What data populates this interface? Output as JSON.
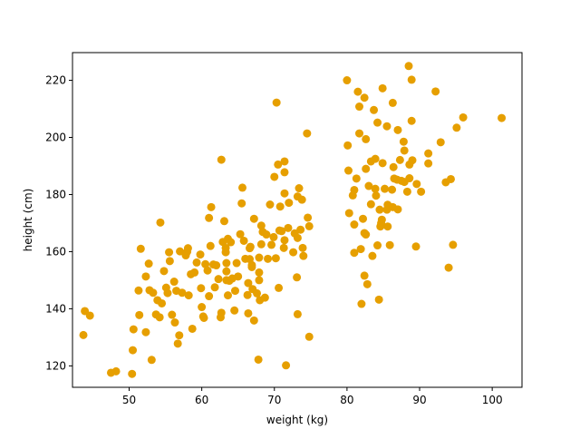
{
  "chart_data": {
    "type": "scatter",
    "title": "",
    "xlabel": "weight (kg)",
    "ylabel": "height (cm)",
    "xlim": [
      42.2,
      104.1
    ],
    "ylim": [
      112.5,
      229.7
    ],
    "xticks": [
      50,
      60,
      70,
      80,
      90,
      100
    ],
    "yticks": [
      120,
      140,
      160,
      180,
      200,
      220
    ],
    "grid": false,
    "legend": "none",
    "marker_color": "#e69f00",
    "series": [
      {
        "points": [
          [
            43.7,
            130.8
          ],
          [
            43.9,
            139.2
          ],
          [
            44.6,
            137.6
          ],
          [
            47.5,
            117.6
          ],
          [
            48.2,
            118.1
          ],
          [
            50.4,
            117.2
          ],
          [
            50.5,
            125.5
          ],
          [
            50.6,
            132.8
          ],
          [
            51.3,
            146.4
          ],
          [
            51.4,
            137.8
          ],
          [
            51.6,
            161.0
          ],
          [
            52.3,
            151.3
          ],
          [
            52.3,
            131.8
          ],
          [
            52.7,
            155.8
          ],
          [
            52.8,
            146.5
          ],
          [
            53.1,
            122.1
          ],
          [
            53.3,
            145.6
          ],
          [
            53.7,
            138.0
          ],
          [
            53.9,
            143.0
          ],
          [
            54.2,
            137.0
          ],
          [
            54.3,
            170.2
          ],
          [
            54.5,
            141.9
          ],
          [
            54.8,
            153.2
          ],
          [
            55.1,
            147.4
          ],
          [
            55.3,
            145.5
          ],
          [
            55.5,
            159.8
          ],
          [
            55.6,
            156.7
          ],
          [
            55.9,
            137.9
          ],
          [
            56.2,
            149.5
          ],
          [
            56.3,
            135.2
          ],
          [
            56.5,
            146.3
          ],
          [
            56.7,
            127.8
          ],
          [
            56.9,
            130.7
          ],
          [
            57.0,
            160.1
          ],
          [
            57.3,
            145.6
          ],
          [
            57.8,
            158.7
          ],
          [
            58.0,
            160.0
          ],
          [
            58.1,
            161.2
          ],
          [
            58.2,
            144.7
          ],
          [
            58.5,
            152.1
          ],
          [
            58.7,
            133.0
          ],
          [
            59.0,
            152.7
          ],
          [
            59.3,
            156.2
          ],
          [
            59.8,
            159.0
          ],
          [
            59.9,
            147.2
          ],
          [
            60.0,
            140.6
          ],
          [
            60.2,
            137.3
          ],
          [
            60.3,
            136.8
          ],
          [
            60.5,
            155.6
          ],
          [
            60.8,
            153.4
          ],
          [
            61.0,
            144.4
          ],
          [
            61.0,
            171.8
          ],
          [
            61.2,
            162.0
          ],
          [
            61.3,
            175.6
          ],
          [
            61.6,
            155.5
          ],
          [
            61.8,
            147.5
          ],
          [
            62.0,
            155.2
          ],
          [
            62.3,
            150.4
          ],
          [
            62.6,
            137.0
          ],
          [
            62.7,
            138.6
          ],
          [
            62.7,
            192.2
          ],
          [
            62.9,
            163.4
          ],
          [
            63.1,
            170.7
          ],
          [
            63.3,
            161.3
          ],
          [
            63.3,
            159.8
          ],
          [
            63.4,
            156.0
          ],
          [
            63.4,
            153.1
          ],
          [
            63.4,
            150.0
          ],
          [
            63.6,
            164.5
          ],
          [
            63.6,
            144.7
          ],
          [
            63.8,
            149.8
          ],
          [
            64.0,
            163.3
          ],
          [
            64.2,
            150.6
          ],
          [
            64.5,
            139.4
          ],
          [
            64.6,
            146.3
          ],
          [
            64.8,
            156.0
          ],
          [
            65.0,
            151.3
          ],
          [
            65.3,
            166.1
          ],
          [
            65.5,
            176.9
          ],
          [
            65.6,
            182.4
          ],
          [
            65.8,
            163.8
          ],
          [
            66.0,
            157.5
          ],
          [
            66.3,
            144.8
          ],
          [
            66.4,
            138.4
          ],
          [
            66.4,
            149.0
          ],
          [
            66.6,
            157.4
          ],
          [
            66.6,
            161.2
          ],
          [
            66.7,
            161.7
          ],
          [
            66.9,
            154.6
          ],
          [
            66.9,
            155.3
          ],
          [
            67.0,
            146.9
          ],
          [
            67.2,
            135.9
          ],
          [
            67.2,
            171.5
          ],
          [
            67.6,
            145.4
          ],
          [
            67.8,
            122.2
          ],
          [
            67.9,
            157.9
          ],
          [
            67.9,
            152.7
          ],
          [
            67.9,
            150.0
          ],
          [
            68.0,
            143.0
          ],
          [
            68.2,
            169.1
          ],
          [
            68.2,
            162.6
          ],
          [
            68.4,
            166.9
          ],
          [
            68.7,
            143.9
          ],
          [
            68.9,
            166.0
          ],
          [
            69.1,
            157.5
          ],
          [
            69.4,
            176.5
          ],
          [
            69.6,
            162.4
          ],
          [
            69.9,
            165.1
          ],
          [
            70.0,
            186.2
          ],
          [
            70.2,
            157.7
          ],
          [
            70.3,
            212.2
          ],
          [
            70.5,
            190.5
          ],
          [
            70.6,
            147.3
          ],
          [
            70.7,
            167.4
          ],
          [
            70.8,
            175.8
          ],
          [
            71.0,
            167.2
          ],
          [
            71.3,
            161.3
          ],
          [
            71.4,
            187.8
          ],
          [
            71.4,
            191.6
          ],
          [
            71.4,
            180.4
          ],
          [
            71.4,
            164.0
          ],
          [
            71.6,
            120.2
          ],
          [
            71.9,
            168.3
          ],
          [
            72.0,
            177.1
          ],
          [
            72.6,
            159.8
          ],
          [
            72.8,
            166.4
          ],
          [
            73.1,
            151.0
          ],
          [
            73.2,
            164.8
          ],
          [
            73.2,
            138.1
          ],
          [
            73.2,
            179.3
          ],
          [
            73.4,
            182.2
          ],
          [
            73.6,
            167.7
          ],
          [
            73.8,
            178.2
          ],
          [
            73.9,
            161.3
          ],
          [
            74.0,
            158.5
          ],
          [
            74.5,
            201.4
          ],
          [
            74.6,
            171.9
          ],
          [
            74.8,
            168.9
          ],
          [
            74.8,
            130.2
          ],
          [
            80.0,
            220.0
          ],
          [
            80.1,
            197.2
          ],
          [
            80.2,
            188.4
          ],
          [
            80.3,
            173.5
          ],
          [
            80.8,
            179.7
          ],
          [
            81.0,
            181.6
          ],
          [
            81.0,
            169.5
          ],
          [
            81.0,
            159.6
          ],
          [
            81.3,
            185.6
          ],
          [
            81.5,
            216.0
          ],
          [
            81.7,
            201.4
          ],
          [
            81.7,
            210.8
          ],
          [
            81.9,
            160.9
          ],
          [
            82.0,
            141.7
          ],
          [
            82.2,
            171.5
          ],
          [
            82.4,
            213.9
          ],
          [
            82.4,
            151.6
          ],
          [
            82.4,
            166.5
          ],
          [
            82.6,
            166.0
          ],
          [
            82.6,
            199.4
          ],
          [
            82.6,
            189.0
          ],
          [
            82.8,
            148.6
          ],
          [
            83.0,
            183.0
          ],
          [
            83.3,
            176.6
          ],
          [
            83.3,
            191.6
          ],
          [
            83.5,
            158.5
          ],
          [
            83.7,
            209.6
          ],
          [
            83.9,
            192.5
          ],
          [
            83.9,
            182.0
          ],
          [
            84.0,
            179.6
          ],
          [
            84.2,
            205.2
          ],
          [
            84.2,
            162.2
          ],
          [
            84.4,
            143.2
          ],
          [
            84.5,
            174.7
          ],
          [
            84.6,
            168.8
          ],
          [
            84.7,
            170.0
          ],
          [
            84.8,
            171.2
          ],
          [
            84.9,
            191.0
          ],
          [
            84.9,
            217.2
          ],
          [
            85.2,
            182.0
          ],
          [
            85.5,
            174.7
          ],
          [
            85.5,
            203.9
          ],
          [
            85.6,
            176.4
          ],
          [
            85.6,
            168.8
          ],
          [
            85.9,
            162.3
          ],
          [
            86.2,
            181.7
          ],
          [
            86.3,
            212.1
          ],
          [
            86.3,
            175.6
          ],
          [
            86.4,
            189.6
          ],
          [
            86.5,
            185.6
          ],
          [
            86.9,
            185.2
          ],
          [
            87.0,
            174.8
          ],
          [
            87.0,
            202.6
          ],
          [
            87.3,
            192.1
          ],
          [
            87.5,
            184.8
          ],
          [
            87.8,
            198.5
          ],
          [
            87.9,
            195.4
          ],
          [
            87.9,
            184.4
          ],
          [
            88.3,
            181.0
          ],
          [
            88.6,
            185.7
          ],
          [
            88.6,
            190.5
          ],
          [
            88.9,
            205.8
          ],
          [
            88.9,
            220.2
          ],
          [
            89.0,
            192.0
          ],
          [
            89.5,
            161.8
          ],
          [
            89.6,
            183.7
          ],
          [
            90.2,
            181.0
          ],
          [
            91.2,
            190.9
          ],
          [
            91.2,
            194.4
          ],
          [
            92.2,
            216.1
          ],
          [
            92.9,
            198.3
          ],
          [
            93.6,
            184.3
          ],
          [
            94.0,
            154.4
          ],
          [
            94.3,
            185.4
          ],
          [
            94.6,
            162.4
          ],
          [
            95.1,
            203.4
          ],
          [
            96.0,
            207.0
          ],
          [
            101.3,
            206.8
          ],
          [
            88.5,
            225.0
          ]
        ]
      }
    ]
  }
}
